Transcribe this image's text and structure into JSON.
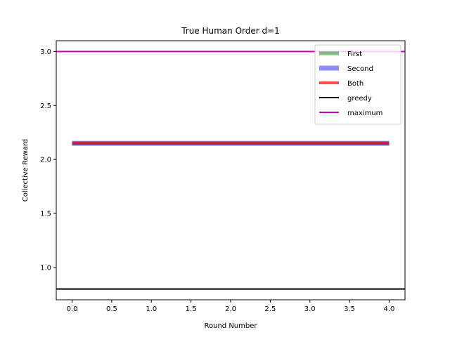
{
  "chart_data": {
    "type": "line",
    "title": "True Human Order d=1",
    "xlabel": "Round Number",
    "ylabel": "Collective Reward",
    "xlim": [
      -0.2,
      4.2
    ],
    "ylim": [
      0.7,
      3.1
    ],
    "xticks": [
      0.0,
      0.5,
      1.0,
      1.5,
      2.0,
      2.5,
      3.0,
      3.5,
      4.0
    ],
    "xtick_labels": [
      "0.0",
      "0.5",
      "1.0",
      "1.5",
      "2.0",
      "2.5",
      "3.0",
      "3.5",
      "4.0"
    ],
    "yticks": [
      1.0,
      1.5,
      2.0,
      2.5,
      3.0
    ],
    "ytick_labels": [
      "1.0",
      "1.5",
      "2.0",
      "2.5",
      "3.0"
    ],
    "grid": false,
    "legend_position": "top-right",
    "series": [
      {
        "name": "First",
        "x": [
          0,
          1,
          2,
          3,
          4
        ],
        "values": [
          2.15,
          2.15,
          2.15,
          2.15,
          2.15
        ],
        "color": "#008000",
        "opacity": 0.5
      },
      {
        "name": "Second",
        "x": [
          0,
          1,
          2,
          3,
          4
        ],
        "values": [
          2.15,
          2.15,
          2.15,
          2.15,
          2.15
        ],
        "color": "#0000ff",
        "opacity": 0.45
      },
      {
        "name": "Both",
        "x": [
          0,
          1,
          2,
          3,
          4
        ],
        "values": [
          2.15,
          2.15,
          2.15,
          2.15,
          2.15
        ],
        "color": "#ff0000",
        "opacity": 0.7
      }
    ],
    "reference_lines": [
      {
        "name": "greedy",
        "y": 0.8,
        "color": "#000000"
      },
      {
        "name": "maximum",
        "y": 3.0,
        "color": "#bf00bf"
      }
    ]
  }
}
